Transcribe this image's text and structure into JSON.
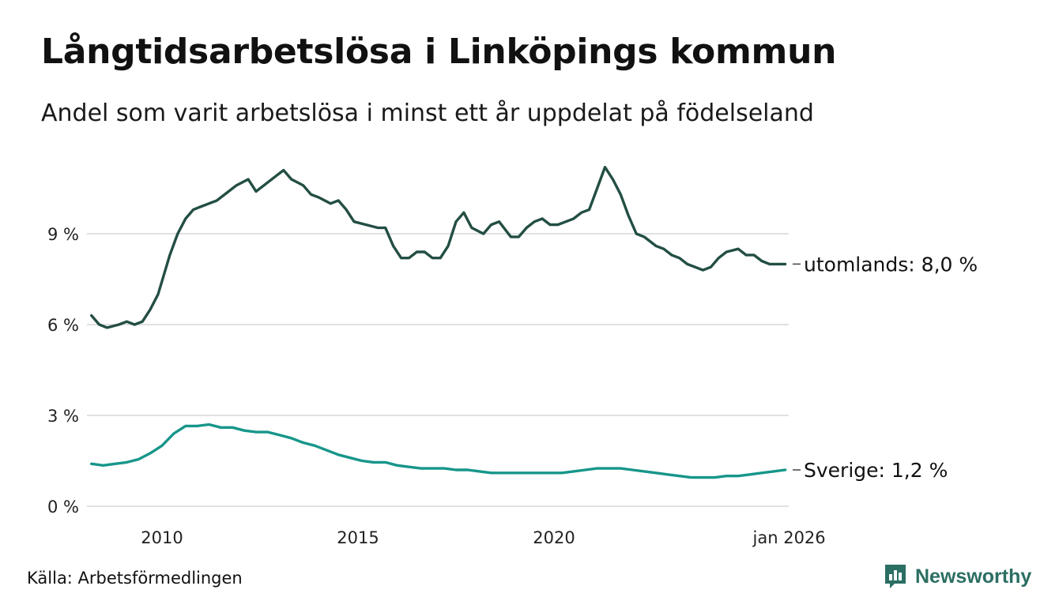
{
  "title": "Långtidsarbetslösa i Linköpings kommun",
  "subtitle": "Andel som varit arbetslösa i minst ett år uppdelat på födelseland",
  "source": "Källa: Arbetsförmedlingen",
  "brand": "Newsworthy",
  "chart_data": {
    "type": "line",
    "title": "Långtidsarbetslösa i Linköpings kommun",
    "subtitle": "Andel som varit arbetslösa i minst ett år uppdelat på födelseland",
    "xlabel": "",
    "ylabel": "",
    "xlim": [
      2008.2,
      2026.0
    ],
    "ylim": [
      0,
      11.5
    ],
    "grid": true,
    "y_ticks": [
      {
        "value": 0,
        "label": "0 %"
      },
      {
        "value": 3,
        "label": "3 %"
      },
      {
        "value": 6,
        "label": "6 %"
      },
      {
        "value": 9,
        "label": "9 %"
      }
    ],
    "x_ticks": [
      {
        "value": 2010,
        "label": "2010"
      },
      {
        "value": 2015,
        "label": "2015"
      },
      {
        "value": 2020,
        "label": "2020"
      },
      {
        "value": 2026.0,
        "label": "jan 2026"
      }
    ],
    "series": [
      {
        "name": "utomlands",
        "end_label": "utomlands: 8,0 %",
        "color": "#234e44",
        "x": [
          2008.2,
          2008.4,
          2008.6,
          2008.9,
          2009.1,
          2009.3,
          2009.5,
          2009.7,
          2009.9,
          2010.2,
          2010.4,
          2010.6,
          2010.8,
          2011.0,
          2011.2,
          2011.4,
          2011.7,
          2011.9,
          2012.2,
          2012.4,
          2012.6,
          2012.9,
          2013.1,
          2013.3,
          2013.6,
          2013.8,
          2014.0,
          2014.3,
          2014.5,
          2014.7,
          2014.9,
          2015.2,
          2015.5,
          2015.7,
          2015.9,
          2016.1,
          2016.3,
          2016.5,
          2016.7,
          2016.9,
          2017.1,
          2017.3,
          2017.5,
          2017.7,
          2017.9,
          2018.2,
          2018.4,
          2018.6,
          2018.9,
          2019.1,
          2019.3,
          2019.5,
          2019.7,
          2019.9,
          2020.1,
          2020.3,
          2020.5,
          2020.7,
          2020.9,
          2021.1,
          2021.3,
          2021.5,
          2021.7,
          2021.9,
          2022.1,
          2022.3,
          2022.6,
          2022.8,
          2023.0,
          2023.2,
          2023.4,
          2023.6,
          2023.8,
          2024.0,
          2024.2,
          2024.4,
          2024.7,
          2024.9,
          2025.1,
          2025.3,
          2025.5,
          2025.7,
          2025.9
        ],
        "y": [
          6.3,
          6.0,
          5.9,
          6.0,
          6.1,
          6.0,
          6.1,
          6.5,
          7.0,
          8.3,
          9.0,
          9.5,
          9.8,
          9.9,
          10.0,
          10.1,
          10.4,
          10.6,
          10.8,
          10.4,
          10.6,
          10.9,
          11.1,
          10.8,
          10.6,
          10.3,
          10.2,
          10.0,
          10.1,
          9.8,
          9.4,
          9.3,
          9.2,
          9.2,
          8.6,
          8.2,
          8.2,
          8.4,
          8.4,
          8.2,
          8.2,
          8.6,
          9.4,
          9.7,
          9.2,
          9.0,
          9.3,
          9.4,
          8.9,
          8.9,
          9.2,
          9.4,
          9.5,
          9.3,
          9.3,
          9.4,
          9.5,
          9.7,
          9.8,
          10.5,
          11.2,
          10.8,
          10.3,
          9.6,
          9.0,
          8.9,
          8.6,
          8.5,
          8.3,
          8.2,
          8.0,
          7.9,
          7.8,
          7.9,
          8.2,
          8.4,
          8.5,
          8.3,
          8.3,
          8.1,
          8.0,
          8.0,
          8.0
        ]
      },
      {
        "name": "Sverige",
        "end_label": "Sverige: 1,2 %",
        "color": "#17968a",
        "x": [
          2008.2,
          2008.5,
          2008.8,
          2009.1,
          2009.4,
          2009.7,
          2010.0,
          2010.3,
          2010.6,
          2010.9,
          2011.2,
          2011.5,
          2011.8,
          2012.1,
          2012.4,
          2012.7,
          2013.0,
          2013.3,
          2013.6,
          2013.9,
          2014.2,
          2014.5,
          2014.8,
          2015.1,
          2015.4,
          2015.7,
          2016.0,
          2016.3,
          2016.6,
          2016.9,
          2017.2,
          2017.5,
          2017.8,
          2018.1,
          2018.4,
          2018.7,
          2019.0,
          2019.3,
          2019.6,
          2019.9,
          2020.2,
          2020.5,
          2020.8,
          2021.1,
          2021.4,
          2021.7,
          2022.0,
          2022.3,
          2022.6,
          2022.9,
          2023.2,
          2023.5,
          2023.8,
          2024.1,
          2024.4,
          2024.7,
          2025.0,
          2025.3,
          2025.6,
          2025.9
        ],
        "y": [
          1.4,
          1.35,
          1.4,
          1.45,
          1.55,
          1.75,
          2.0,
          2.4,
          2.65,
          2.65,
          2.7,
          2.6,
          2.6,
          2.5,
          2.45,
          2.45,
          2.35,
          2.25,
          2.1,
          2.0,
          1.85,
          1.7,
          1.6,
          1.5,
          1.45,
          1.45,
          1.35,
          1.3,
          1.25,
          1.25,
          1.25,
          1.2,
          1.2,
          1.15,
          1.1,
          1.1,
          1.1,
          1.1,
          1.1,
          1.1,
          1.1,
          1.15,
          1.2,
          1.25,
          1.25,
          1.25,
          1.2,
          1.15,
          1.1,
          1.05,
          1.0,
          0.95,
          0.95,
          0.95,
          1.0,
          1.0,
          1.05,
          1.1,
          1.15,
          1.2
        ]
      }
    ]
  }
}
